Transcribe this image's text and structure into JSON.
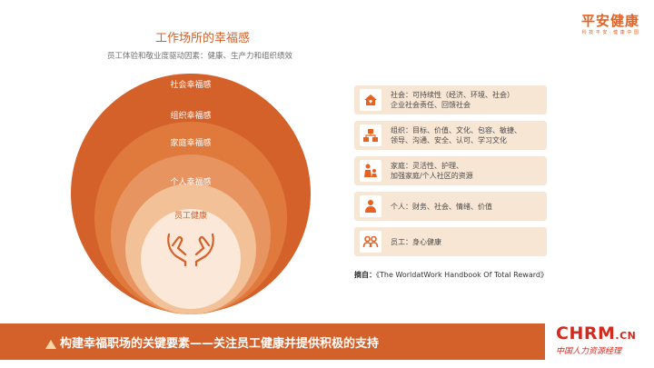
{
  "brand": {
    "name": "平安健康",
    "tagline": "科 技 平 安 · 健 康 中 国"
  },
  "diagram": {
    "title": "工作场所的幸福感",
    "subtitle": "员工体验和敬业度驱动因素：健康、生产力和组织绩效",
    "rings": [
      {
        "label": "社会幸福感",
        "color": "#d4602a",
        "text_color": "#ffffff"
      },
      {
        "label": "组织幸福感",
        "color": "#e07a3c",
        "text_color": "#ffffff"
      },
      {
        "label": "家庭幸福感",
        "color": "#e89460",
        "text_color": "#ffffff"
      },
      {
        "label": "个人幸福感",
        "color": "#f2c198",
        "text_color": "#ffffff"
      },
      {
        "label": "员工健康",
        "color": "#fbe8d8",
        "text_color": "#d4602a"
      }
    ],
    "center_icon": "caring-hands-icon"
  },
  "panel": {
    "rows": [
      {
        "icon": "house-icon",
        "text": "社会：可持续性（经济、环境、社会）\n企业社会责任、回馈社会"
      },
      {
        "icon": "org-chart-icon",
        "text": "组织：目标、价值、文化、包容、敏捷、\n领导、沟通、安全、认可、学习文化"
      },
      {
        "icon": "family-icon",
        "text": "家庭：灵活性、护理、\n加强家庭/个人社区的资源"
      },
      {
        "icon": "person-icon",
        "text": "个人：财务、社会、情绪、价值"
      },
      {
        "icon": "people-icon",
        "text": "员工：身心健康"
      }
    ],
    "source_label": "摘自：",
    "source_text": "《The WorldatWork Handbook Of Total Reward》"
  },
  "footer": {
    "headline": "构建幸福职场的关键要素——关注员工健康并提供积极的支持",
    "logo_main": "CHRM",
    "logo_suffix": ".CN",
    "logo_sub": "中国人力资源经理"
  },
  "colors": {
    "accent": "#d4602a",
    "panel_bg": "#f7e6d4",
    "logo_red": "#d22a1f"
  }
}
